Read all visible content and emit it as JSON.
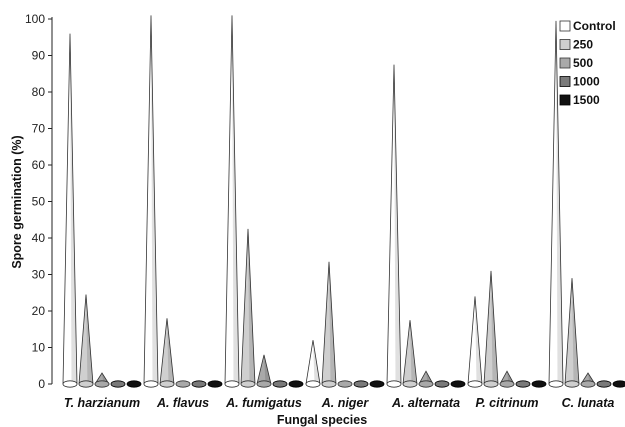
{
  "chart_data": {
    "type": "bar",
    "bar_style": "3d-cone",
    "xlabel": "Fungal species",
    "ylabel": "Spore germination (%)",
    "ylim": [
      0,
      100
    ],
    "yticks": [
      0,
      10,
      20,
      30,
      40,
      50,
      60,
      70,
      80,
      90,
      100
    ],
    "grid": false,
    "legend_position": "top-right",
    "categories": [
      "T. harzianum",
      "A. flavus",
      "A. fumigatus",
      "A. niger",
      "A. alternata",
      "P. citrinum",
      "C. lunata"
    ],
    "series": [
      {
        "name": "Control",
        "color": "#ffffff",
        "values": [
          96,
          101,
          101,
          12,
          87.5,
          24,
          99.5
        ]
      },
      {
        "name": "250",
        "color": "#cfcfcf",
        "values": [
          24.5,
          18,
          42.5,
          33.5,
          17.5,
          31,
          29
        ]
      },
      {
        "name": "500",
        "color": "#a9a9a9",
        "values": [
          3,
          0.8,
          8,
          0.8,
          3.5,
          3.5,
          3
        ]
      },
      {
        "name": "1000",
        "color": "#7a7a7a",
        "values": [
          1.5,
          0.8,
          0.8,
          0.8,
          1,
          1,
          1
        ]
      },
      {
        "name": "1500",
        "color": "#111111",
        "values": [
          0.8,
          0.8,
          0.8,
          0.8,
          0.8,
          0.8,
          0.8
        ]
      }
    ]
  }
}
